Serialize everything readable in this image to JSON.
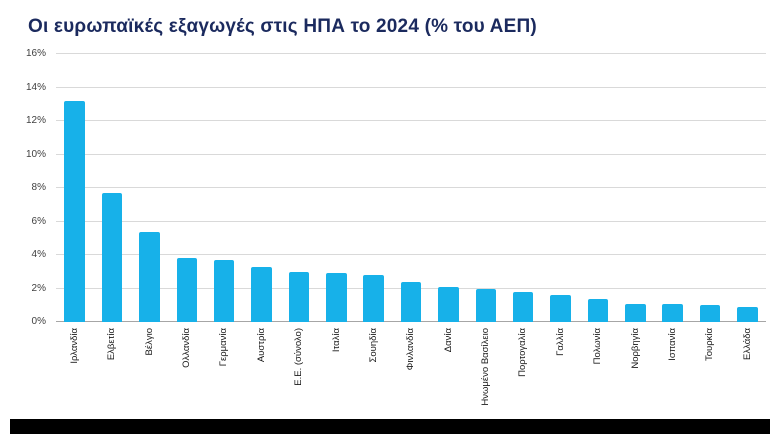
{
  "chart_data": {
    "type": "bar",
    "title": "Οι ευρωπαϊκές εξαγωγές στις ΗΠΑ το 2024 (% του ΑΕΠ)",
    "categories": [
      "Ιρλανδία",
      "Ελβετία",
      "Βέλγιο",
      "Ολλανδία",
      "Γερμανία",
      "Αυστρία",
      "Ε.Ε. (σύνολο)",
      "Ιταλία",
      "Σουηδία",
      "Φινλανδία",
      "Δανία",
      "Ηνωμένο Βασίλειο",
      "Πορτογαλία",
      "Γαλλία",
      "Πολωνία",
      "Νορβηγία",
      "Ισπανία",
      "Τουρκία",
      "Ελλάδα"
    ],
    "values": [
      13.2,
      7.7,
      5.4,
      3.8,
      3.7,
      3.3,
      3.0,
      2.9,
      2.8,
      2.4,
      2.1,
      2.0,
      1.8,
      1.6,
      1.4,
      1.1,
      1.1,
      1.0,
      0.9
    ],
    "xlabel": "",
    "ylabel": "",
    "ylim": [
      0,
      16
    ],
    "ytick_step": 2,
    "ytick_labels": [
      "0%",
      "2%",
      "4%",
      "6%",
      "8%",
      "10%",
      "12%",
      "14%",
      "16%"
    ],
    "grid": true,
    "legend": "none"
  },
  "colors": {
    "bar": "#17b1e9",
    "title": "#1b2a5e",
    "grid": "#d9d9d9",
    "axis": "#a6a6a6",
    "tick_text": "#404040",
    "footer_bar": "#000000",
    "background": "#ffffff"
  }
}
